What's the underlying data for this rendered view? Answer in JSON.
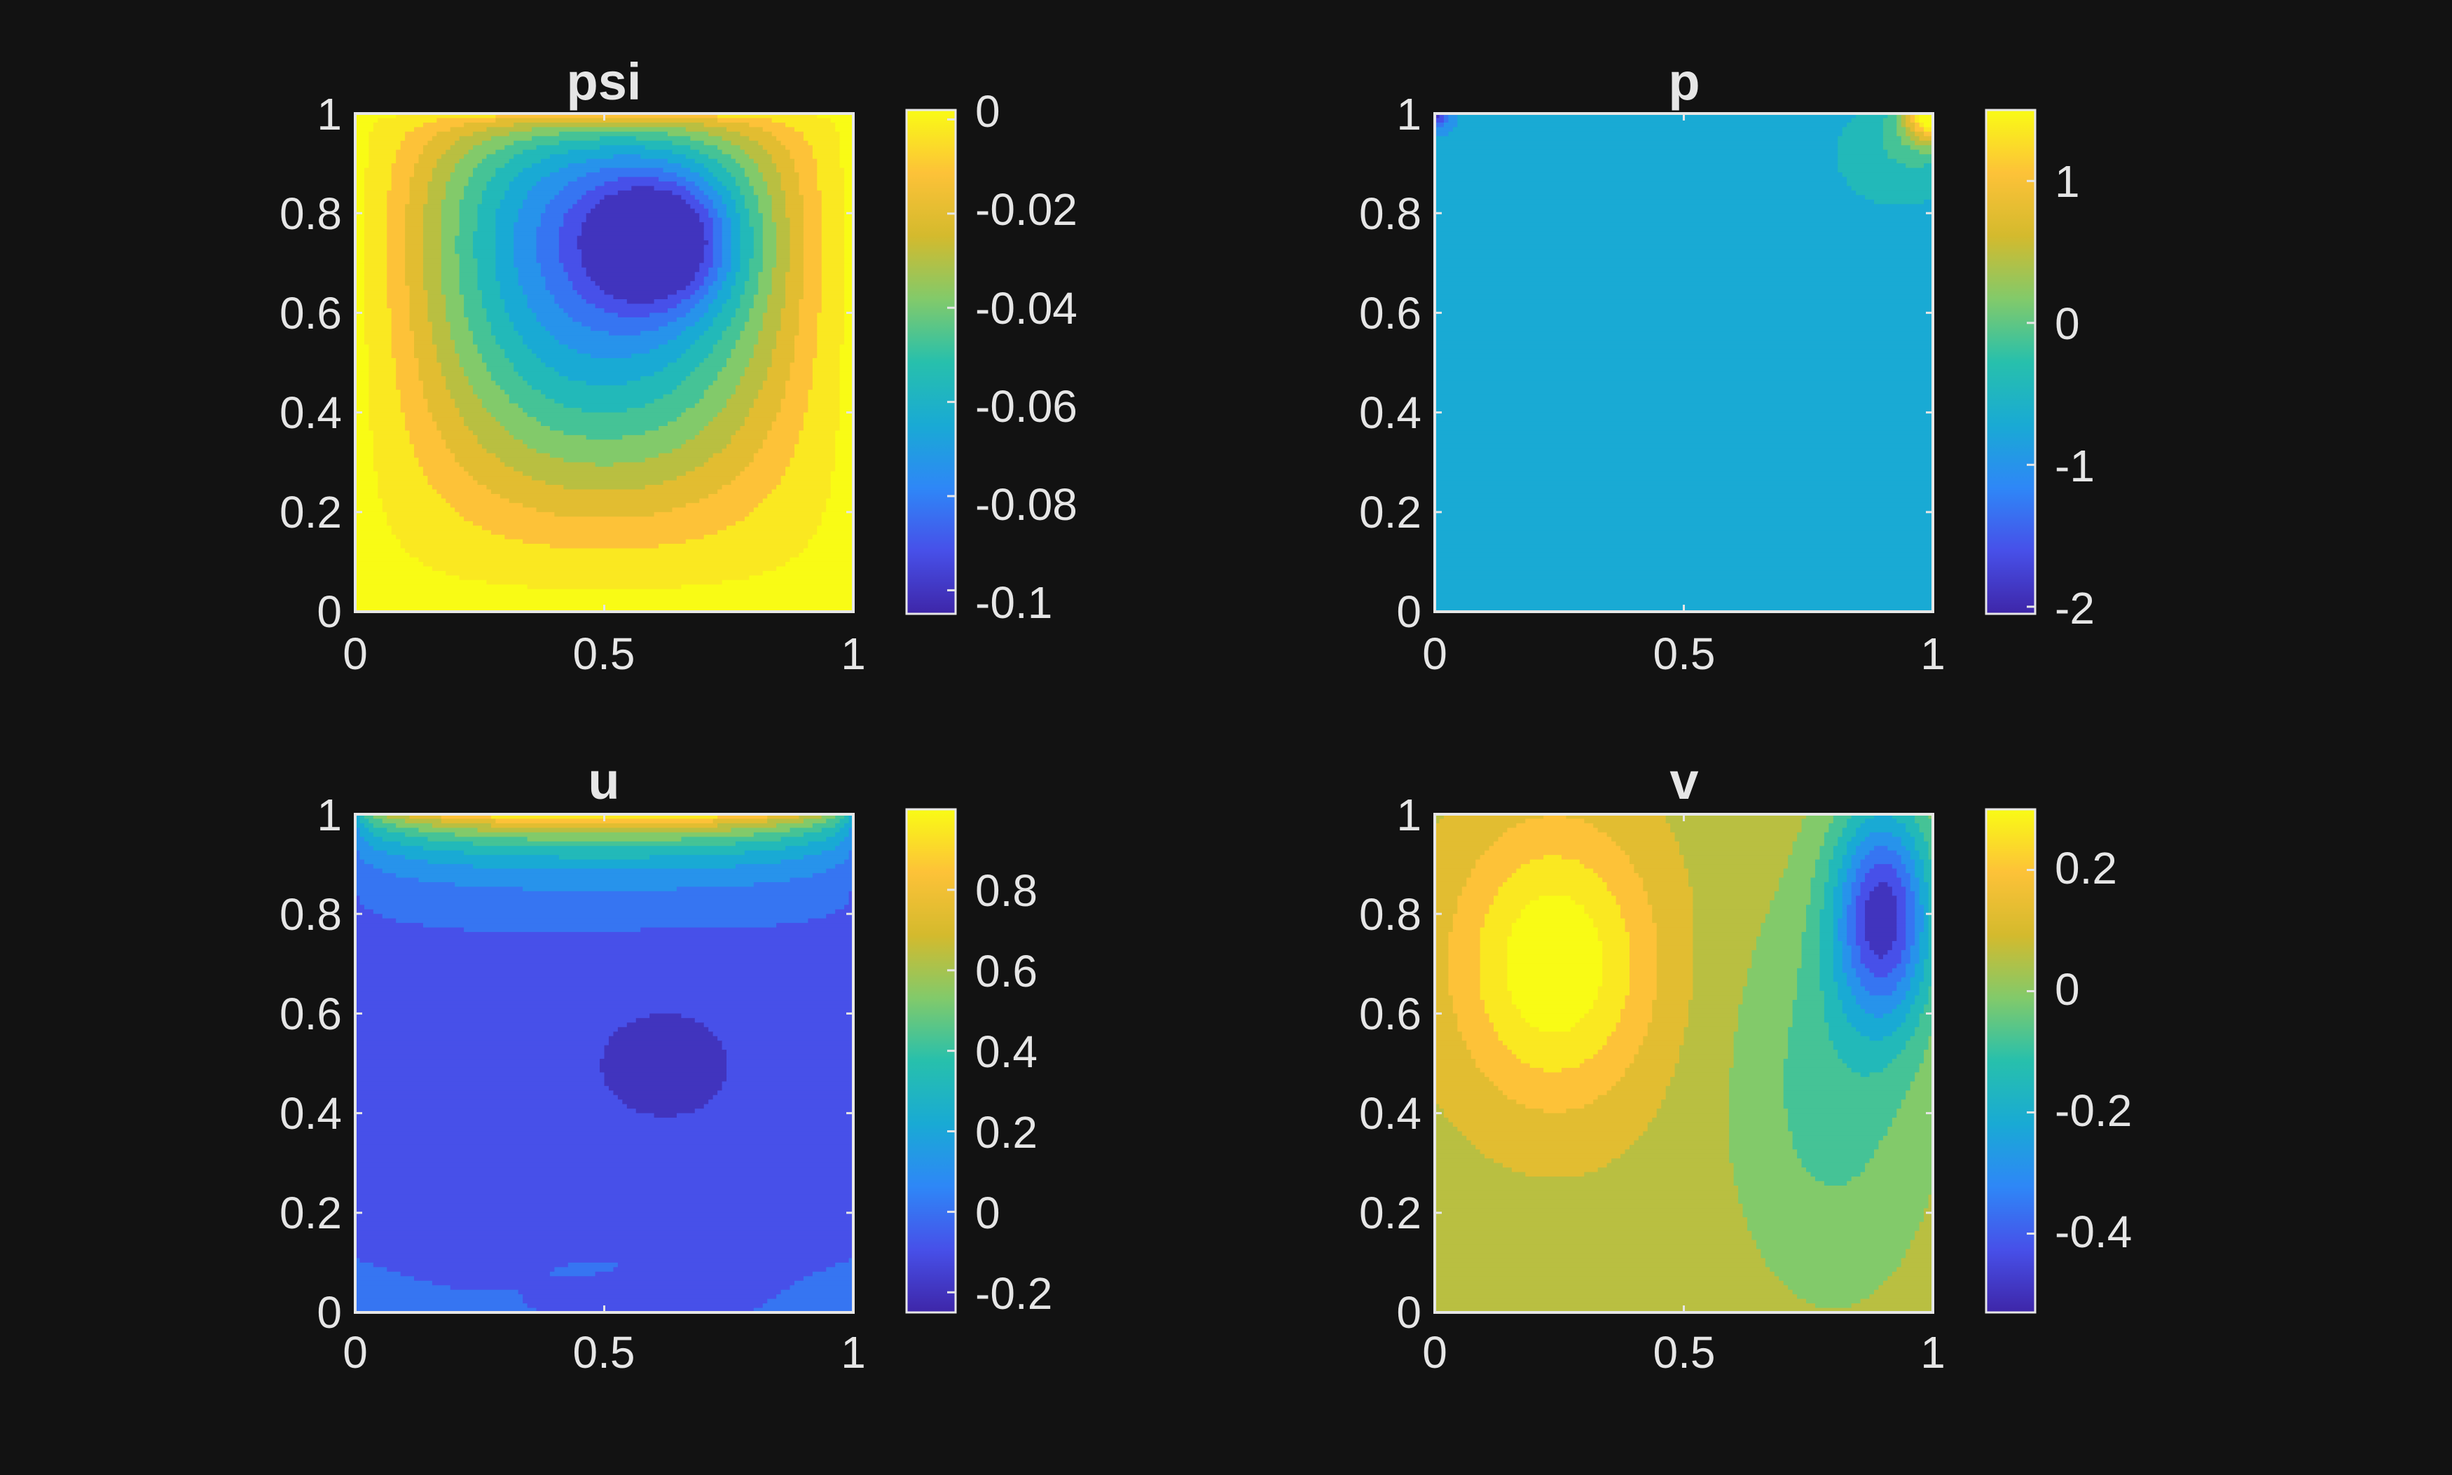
{
  "figure": {
    "background": "#121212",
    "foreground": "#e6e6e6",
    "colormap": "parula"
  },
  "chart_data": [
    {
      "type": "heatmap",
      "id": "psi",
      "title": "psi",
      "xlim": [
        0,
        1
      ],
      "ylim": [
        0,
        1
      ],
      "x_ticks": [
        "0",
        "0.5",
        "1"
      ],
      "y_ticks": [
        "0",
        "0.2",
        "0.4",
        "0.6",
        "0.8",
        "1"
      ],
      "x_tick_values": [
        0,
        0.5,
        1
      ],
      "y_tick_values": [
        0,
        0.2,
        0.4,
        0.6,
        0.8,
        1
      ],
      "field": {
        "kind": "cavity-streamfunction",
        "min": -0.103,
        "max": 0,
        "vortex_center": [
          0.62,
          0.74
        ]
      },
      "colorbar": {
        "range": [
          -0.105,
          0.002
        ],
        "ticks": [
          "0",
          "-0.02",
          "-0.04",
          "-0.06",
          "-0.08",
          "-0.1"
        ],
        "tick_values": [
          0,
          -0.02,
          -0.04,
          -0.06,
          -0.08,
          -0.1
        ]
      },
      "grid": false
    },
    {
      "type": "heatmap",
      "id": "p",
      "title": "p",
      "xlim": [
        0,
        1
      ],
      "ylim": [
        0,
        1
      ],
      "x_ticks": [
        "0",
        "0.5",
        "1"
      ],
      "y_ticks": [
        "0",
        "0.2",
        "0.4",
        "0.6",
        "0.8",
        "1"
      ],
      "x_tick_values": [
        0,
        0.5,
        1
      ],
      "y_tick_values": [
        0,
        0.2,
        0.4,
        0.6,
        0.8,
        1
      ],
      "field": {
        "kind": "cavity-pressure",
        "min": -2,
        "max": 1.5,
        "background": -0.95
      },
      "colorbar": {
        "range": [
          -2.05,
          1.5
        ],
        "ticks": [
          "1",
          "0",
          "-1",
          "-2"
        ],
        "tick_values": [
          1,
          0,
          -1,
          -2
        ]
      },
      "grid": false
    },
    {
      "type": "heatmap",
      "id": "u",
      "title": "u",
      "xlim": [
        0,
        1
      ],
      "ylim": [
        0,
        1
      ],
      "x_ticks": [
        "0",
        "0.5",
        "1"
      ],
      "y_ticks": [
        "0",
        "0.2",
        "0.4",
        "0.6",
        "0.8",
        "1"
      ],
      "x_tick_values": [
        0,
        0.5,
        1
      ],
      "y_tick_values": [
        0,
        0.2,
        0.4,
        0.6,
        0.8,
        1
      ],
      "field": {
        "kind": "cavity-u-velocity",
        "min": -0.23,
        "max": 1,
        "lid_velocity": 1
      },
      "colorbar": {
        "range": [
          -0.25,
          1
        ],
        "ticks": [
          "0.8",
          "0.6",
          "0.4",
          "0.2",
          "0",
          "-0.2"
        ],
        "tick_values": [
          0.8,
          0.6,
          0.4,
          0.2,
          0,
          -0.2
        ]
      },
      "grid": false
    },
    {
      "type": "heatmap",
      "id": "v",
      "title": "v",
      "xlim": [
        0,
        1
      ],
      "ylim": [
        0,
        1
      ],
      "x_ticks": [
        "0",
        "0.5",
        "1"
      ],
      "y_ticks": [
        "0",
        "0.2",
        "0.4",
        "0.6",
        "0.8",
        "1"
      ],
      "x_tick_values": [
        0,
        0.5,
        1
      ],
      "y_tick_values": [
        0,
        0.2,
        0.4,
        0.6,
        0.8,
        1
      ],
      "field": {
        "kind": "cavity-v-velocity",
        "min": -0.53,
        "max": 0.3,
        "max_at": [
          0.24,
          0.7
        ],
        "min_at": [
          0.9,
          0.8
        ]
      },
      "colorbar": {
        "range": [
          -0.53,
          0.3
        ],
        "ticks": [
          "0.2",
          "0",
          "-0.2",
          "-0.4"
        ],
        "tick_values": [
          0.2,
          0,
          -0.2,
          -0.4
        ]
      },
      "grid": false
    }
  ]
}
